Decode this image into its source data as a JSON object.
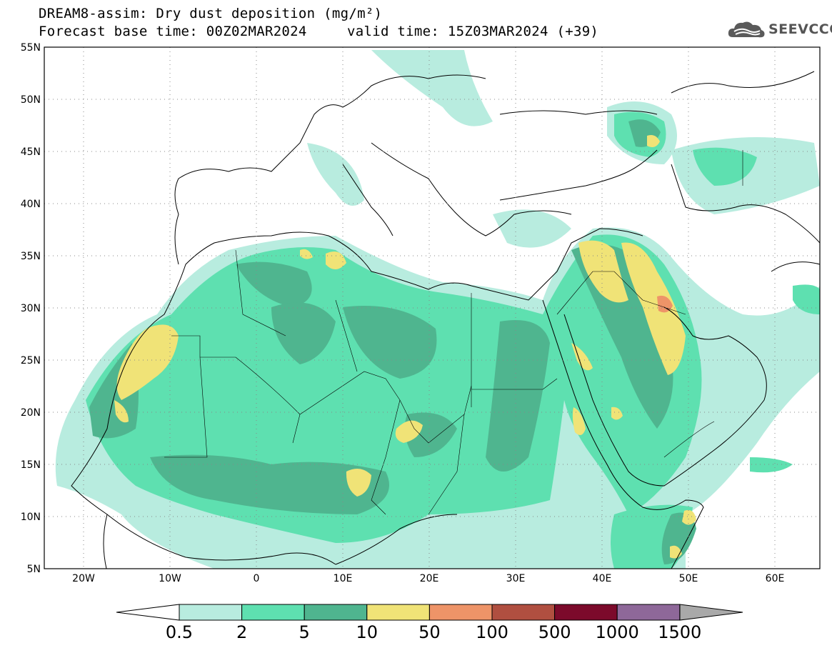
{
  "header": {
    "title_line1": "DREAM8-assim: Dry dust deposition (mg/m²)",
    "title_line2_left": "Forecast base time: 00Z02MAR2024",
    "title_line2_right": "valid time: 15Z03MAR2024 (+39)",
    "logo_text": "SEEVCCC",
    "logo_icon": "cloud-logo-icon"
  },
  "map": {
    "lat_labels": [
      "55N",
      "50N",
      "45N",
      "40N",
      "35N",
      "30N",
      "25N",
      "20N",
      "15N",
      "10N",
      "5N"
    ],
    "lon_labels": [
      "20W",
      "10W",
      "0",
      "10E",
      "20E",
      "30E",
      "40E",
      "50E",
      "60E"
    ]
  },
  "colorbar": {
    "levels": [
      "0.5",
      "2",
      "5",
      "10",
      "50",
      "100",
      "500",
      "1000",
      "1500"
    ],
    "colors": [
      "#b8ecdf",
      "#5ee0b0",
      "#4fb58f",
      "#f0e377",
      "#ee9468",
      "#b04f40",
      "#7c0a2b",
      "#8e6899"
    ],
    "under_color": "#ffffff",
    "over_color": "#a9a9a9"
  }
}
